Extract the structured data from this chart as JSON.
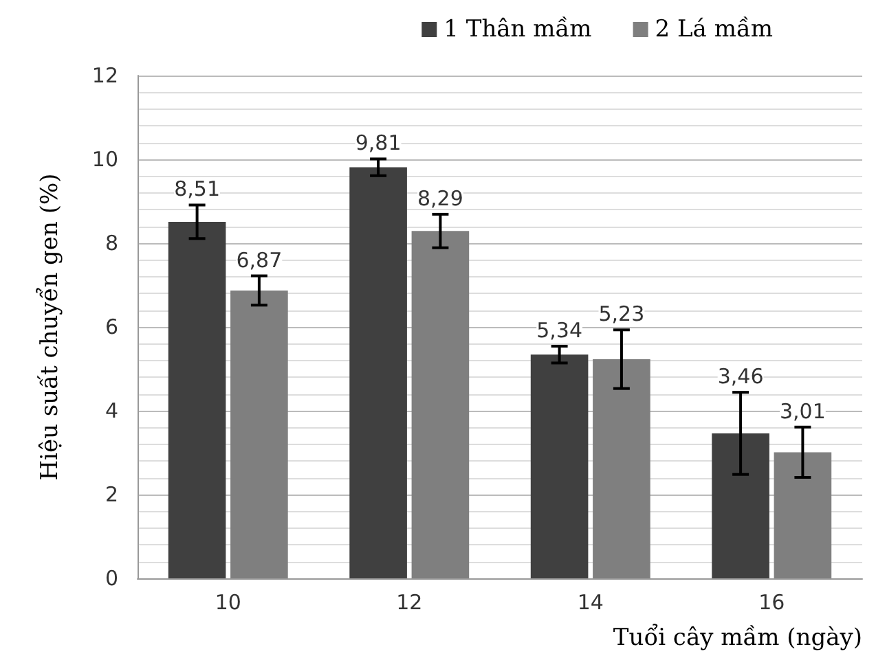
{
  "chart_data": {
    "type": "bar",
    "xlabel": "Tuổi cây mầm (ngày)",
    "ylabel": "Hiệu suất chuyển gen (%)",
    "categories": [
      "10",
      "12",
      "14",
      "16"
    ],
    "series": [
      {
        "name": "1 Thân mầm",
        "color": "#404040",
        "values": [
          8.51,
          9.81,
          5.34,
          3.46
        ],
        "errors": [
          0.4,
          0.2,
          0.2,
          0.98
        ],
        "value_labels": [
          "8,51",
          "9,81",
          "5,34",
          "3,46"
        ]
      },
      {
        "name": "2 Lá mầm",
        "color": "#7f7f7f",
        "values": [
          6.87,
          8.29,
          5.23,
          3.01
        ],
        "errors": [
          0.35,
          0.4,
          0.7,
          0.6
        ],
        "value_labels": [
          "6,87",
          "8,29",
          "5,23",
          "3,01"
        ]
      }
    ],
    "ylim": [
      0,
      12
    ],
    "yticks": [
      0,
      2,
      4,
      6,
      8,
      10,
      12
    ],
    "grid": "y",
    "legend": "top right"
  }
}
